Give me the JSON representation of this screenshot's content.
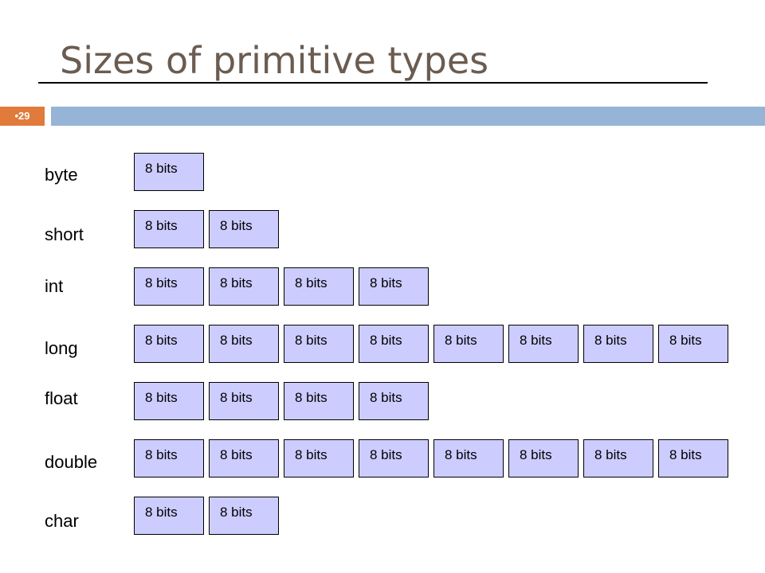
{
  "slide": {
    "title": "Sizes of primitive types",
    "page_number": "•29"
  },
  "cell_label": "8 bits",
  "types": [
    {
      "name": "byte",
      "cells": 1
    },
    {
      "name": "short",
      "cells": 2
    },
    {
      "name": "int",
      "cells": 4
    },
    {
      "name": "long",
      "cells": 8
    },
    {
      "name": "float",
      "cells": 4
    },
    {
      "name": "double",
      "cells": 8
    },
    {
      "name": "char",
      "cells": 2
    }
  ],
  "colors": {
    "title": "#6b5c51",
    "badge": "#e07b3c",
    "band": "#96b4d6",
    "cell_fill": "#ccccff"
  }
}
